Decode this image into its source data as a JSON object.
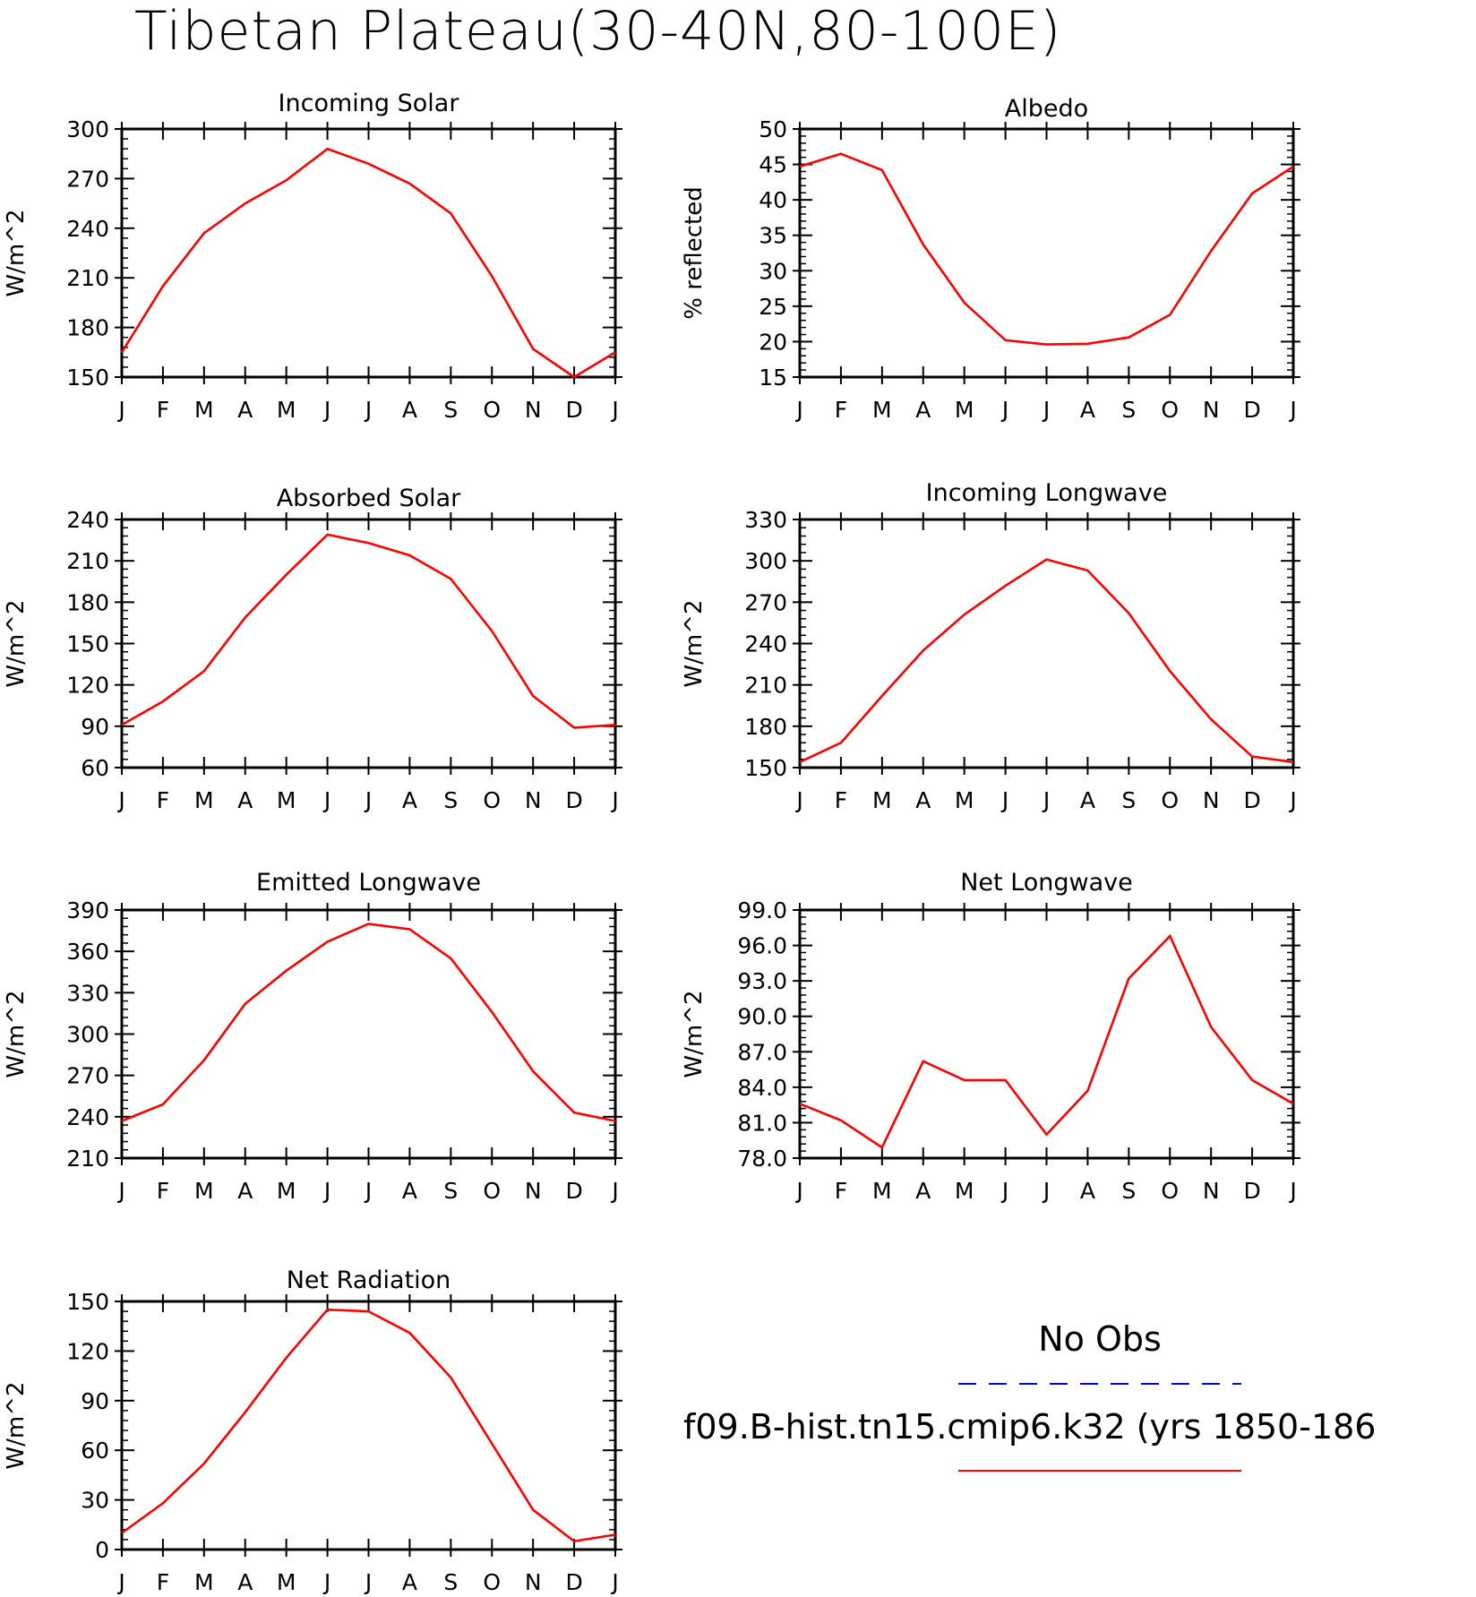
{
  "title": "Tibetan Plateau(30-40N,80-100E)",
  "colors": {
    "model": "#ff0000",
    "obs": "#0000ff",
    "axis": "#000000"
  },
  "legend": {
    "obs_label": "No Obs",
    "model_label": "f09.B-hist.tn15.cmip6.k32 (yrs 1850-186"
  },
  "chart_data": [
    {
      "type": "line",
      "title": "Incoming Solar",
      "ylabel": "W/m^2",
      "categories": [
        "J",
        "F",
        "M",
        "A",
        "M",
        "J",
        "J",
        "A",
        "S",
        "O",
        "N",
        "D",
        "J"
      ],
      "ylim": [
        150,
        300
      ],
      "yticks": [
        "150",
        "180",
        "210",
        "240",
        "270",
        "300"
      ],
      "series": [
        {
          "values": [
            165,
            205,
            237,
            255,
            269,
            288,
            279,
            267,
            249,
            211,
            167,
            150,
            165
          ]
        }
      ]
    },
    {
      "type": "line",
      "title": "Albedo",
      "ylabel": "% reflected",
      "categories": [
        "J",
        "F",
        "M",
        "A",
        "M",
        "J",
        "J",
        "A",
        "S",
        "O",
        "N",
        "D",
        "J"
      ],
      "ylim": [
        15,
        50
      ],
      "yticks": [
        "15",
        "20",
        "25",
        "30",
        "35",
        "40",
        "45",
        "50"
      ],
      "series": [
        {
          "values": [
            44.7,
            46.5,
            44.2,
            33.7,
            25.5,
            20.2,
            19.6,
            19.7,
            20.6,
            23.8,
            32.8,
            40.9,
            44.7
          ]
        }
      ]
    },
    {
      "type": "line",
      "title": "Absorbed Solar",
      "ylabel": "W/m^2",
      "categories": [
        "J",
        "F",
        "M",
        "A",
        "M",
        "J",
        "J",
        "A",
        "S",
        "O",
        "N",
        "D",
        "J"
      ],
      "ylim": [
        60,
        240
      ],
      "yticks": [
        "60",
        "90",
        "120",
        "150",
        "180",
        "210",
        "240"
      ],
      "series": [
        {
          "values": [
            91,
            108,
            130,
            169,
            200,
            229,
            223,
            214,
            197,
            159,
            112,
            89,
            91
          ]
        }
      ]
    },
    {
      "type": "line",
      "title": "Incoming Longwave",
      "ylabel": "W/m^2",
      "categories": [
        "J",
        "F",
        "M",
        "A",
        "M",
        "J",
        "J",
        "A",
        "S",
        "O",
        "N",
        "D",
        "J"
      ],
      "ylim": [
        150,
        330
      ],
      "yticks": [
        "150",
        "180",
        "210",
        "240",
        "270",
        "300",
        "330"
      ],
      "series": [
        {
          "values": [
            154,
            168,
            202,
            235,
            261,
            282,
            301,
            293,
            262,
            220,
            185,
            158,
            154
          ]
        }
      ]
    },
    {
      "type": "line",
      "title": "Emitted Longwave",
      "ylabel": "W/m^2",
      "categories": [
        "J",
        "F",
        "M",
        "A",
        "M",
        "J",
        "J",
        "A",
        "S",
        "O",
        "N",
        "D",
        "J"
      ],
      "ylim": [
        210,
        390
      ],
      "yticks": [
        "210",
        "240",
        "270",
        "300",
        "330",
        "360",
        "390"
      ],
      "series": [
        {
          "values": [
            237,
            249,
            281,
            322,
            346,
            367,
            380,
            376,
            355,
            316,
            273,
            243,
            237
          ]
        }
      ]
    },
    {
      "type": "line",
      "title": "Net Longwave",
      "ylabel": "W/m^2",
      "categories": [
        "J",
        "F",
        "M",
        "A",
        "M",
        "J",
        "J",
        "A",
        "S",
        "O",
        "N",
        "D",
        "J"
      ],
      "ylim": [
        78,
        99
      ],
      "yticks": [
        "78.0",
        "81.0",
        "84.0",
        "87.0",
        "90.0",
        "93.0",
        "96.0",
        "99.0"
      ],
      "series": [
        {
          "values": [
            82.6,
            81.2,
            78.9,
            86.2,
            84.6,
            84.6,
            80.0,
            83.7,
            93.2,
            96.8,
            89.1,
            84.6,
            82.6
          ]
        }
      ]
    },
    {
      "type": "line",
      "title": "Net Radiation",
      "ylabel": "W/m^2",
      "categories": [
        "J",
        "F",
        "M",
        "A",
        "M",
        "J",
        "J",
        "A",
        "S",
        "O",
        "N",
        "D",
        "J"
      ],
      "ylim": [
        0,
        150
      ],
      "yticks": [
        "0",
        "30",
        "60",
        "90",
        "120",
        "150"
      ],
      "series": [
        {
          "values": [
            10,
            28,
            52,
            83,
            116,
            145,
            144,
            131,
            104,
            64,
            24,
            5,
            9
          ]
        }
      ]
    }
  ]
}
